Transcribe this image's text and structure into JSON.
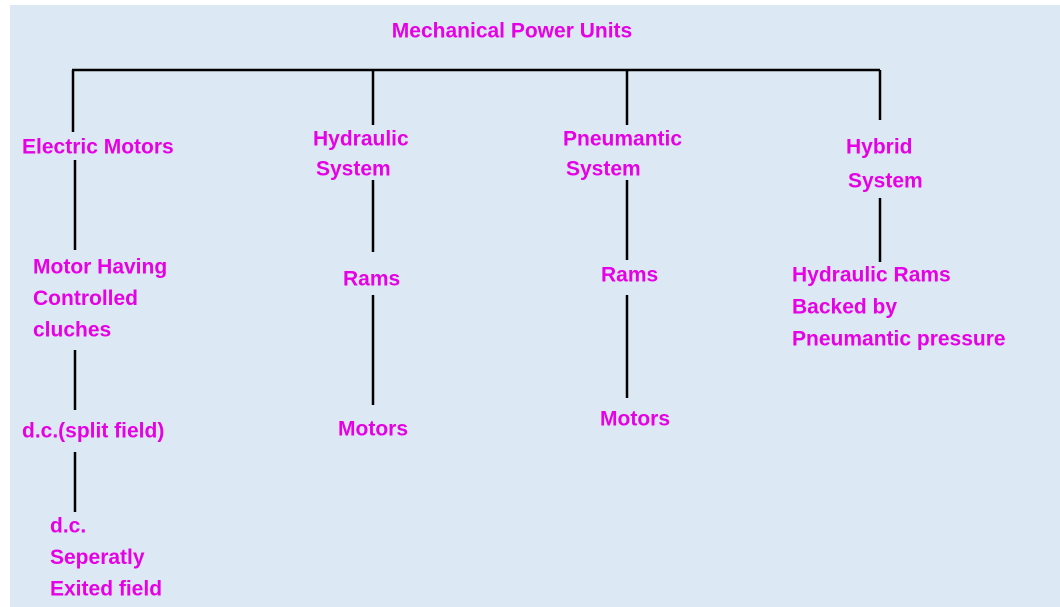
{
  "title": "Mechanical Power Units",
  "nodes": [
    {
      "lines": [
        "Electric Motors"
      ]
    },
    {
      "lines": [
        "Hydraulic",
        "System"
      ]
    },
    {
      "lines": [
        "Pneumantic",
        "System"
      ]
    },
    {
      "lines": [
        "Hybrid",
        "System"
      ]
    },
    {
      "lines": [
        "Motor Having",
        "Controlled",
        "cluches"
      ]
    },
    {
      "lines": [
        "d.c.(split field)"
      ]
    },
    {
      "lines": [
        "d.c.",
        "Seperatly",
        "Exited field"
      ]
    },
    {
      "lines": [
        "Rams"
      ]
    },
    {
      "lines": [
        "Motors"
      ]
    },
    {
      "lines": [
        "Rams"
      ]
    },
    {
      "lines": [
        "Motors"
      ]
    },
    {
      "lines": [
        "Hydraulic Rams",
        "Backed by",
        "Pneumantic pressure"
      ]
    }
  ]
}
